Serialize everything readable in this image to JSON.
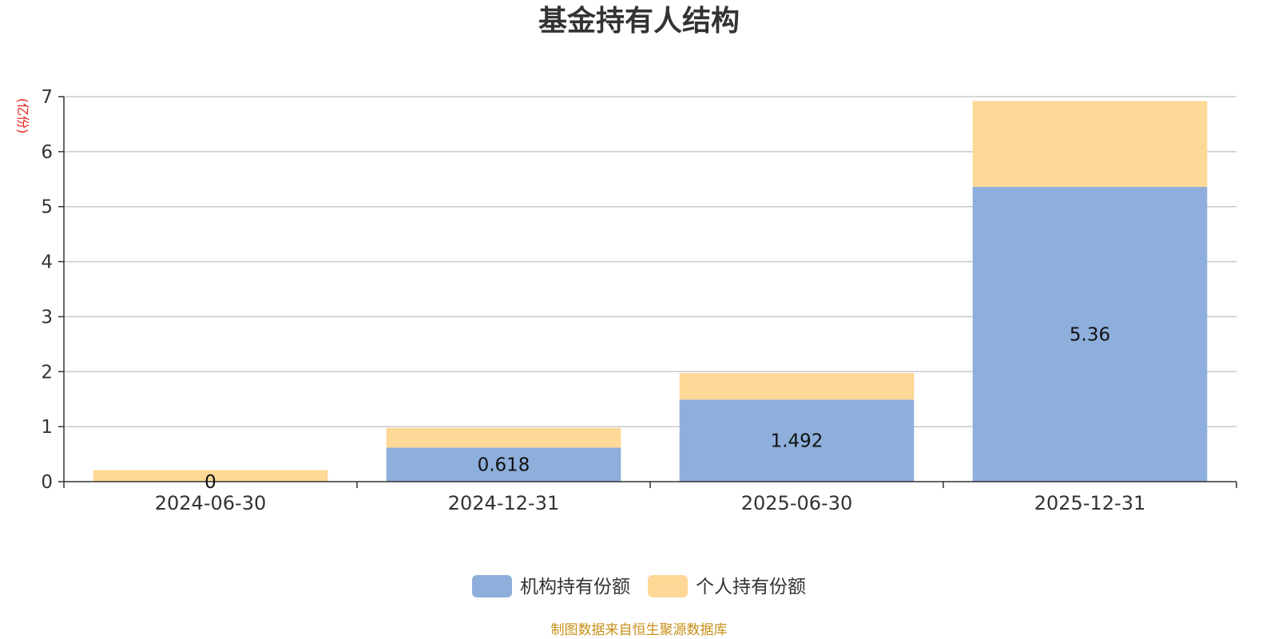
{
  "chart_data": {
    "type": "bar",
    "stacked": true,
    "title": "基金持有人结构",
    "unit_label": "(亿份)",
    "categories": [
      "2024-06-30",
      "2024-12-31",
      "2025-06-30",
      "2025-12-31"
    ],
    "series": [
      {
        "name": "机构持有份额",
        "values": [
          0,
          0.618,
          1.492,
          5.36
        ],
        "color": "#8eaedb",
        "data_labels": [
          "0",
          "0.618",
          "1.492",
          "5.36"
        ]
      },
      {
        "name": "个人持有份额",
        "values": [
          0.21,
          0.36,
          0.48,
          1.56
        ],
        "color": "#fed896"
      }
    ],
    "ylim": [
      0,
      7
    ],
    "yticks": [
      0,
      1,
      2,
      3,
      4,
      5,
      6,
      7
    ],
    "grid": true,
    "legend_position": "bottom-center",
    "source": "制图数据来自恒生聚源数据库"
  }
}
